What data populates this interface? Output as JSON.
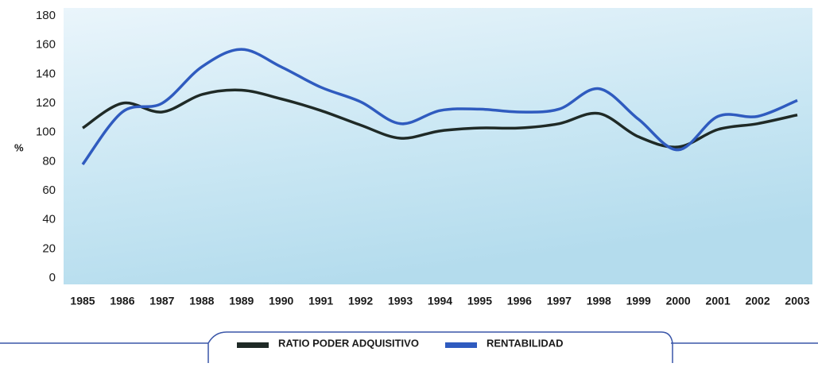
{
  "chart_data": {
    "type": "line",
    "y_label": "%",
    "categories": [
      "1985",
      "1986",
      "1987",
      "1988",
      "1989",
      "1990",
      "1991",
      "1992",
      "1993",
      "1994",
      "1995",
      "1996",
      "1997",
      "1998",
      "1999",
      "2000",
      "2001",
      "2002",
      "2003"
    ],
    "series": [
      {
        "name": "RATIO PODER ADQUISITIVO",
        "color": "#1f2a26",
        "values": [
          103,
          120,
          114,
          126,
          129,
          123,
          115,
          105,
          96,
          101,
          103,
          103,
          106,
          113,
          97,
          90,
          102,
          106,
          112
        ]
      },
      {
        "name": "RENTABILIDAD",
        "color": "#2f5bbf",
        "values": [
          78,
          114,
          120,
          145,
          157,
          145,
          131,
          121,
          106,
          115,
          116,
          114,
          116,
          130,
          109,
          88,
          111,
          111,
          122
        ]
      }
    ],
    "ylim": [
      0,
      180
    ],
    "yticks": [
      0,
      20,
      40,
      60,
      80,
      100,
      120,
      140,
      160,
      180
    ],
    "legend": "bottom"
  }
}
